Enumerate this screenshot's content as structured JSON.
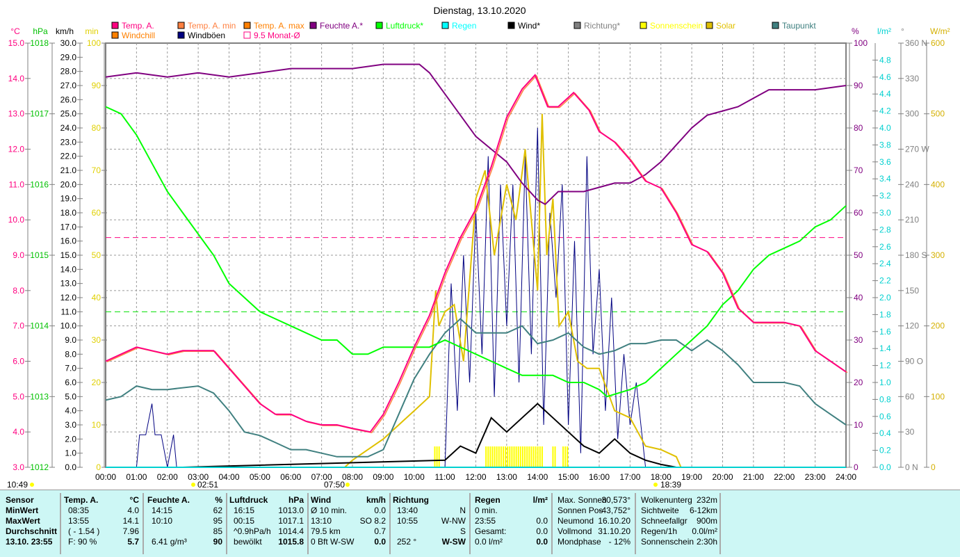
{
  "chart_data": {
    "type": "line",
    "title": "Dienstag, 13.10.2020",
    "xlim": [
      "00:00",
      "24:00"
    ],
    "x_ticks": [
      "00:00",
      "01:00",
      "02:00",
      "03:00",
      "04:00",
      "05:00",
      "06:00",
      "07:00",
      "08:00",
      "09:00",
      "10:00",
      "11:00",
      "12:00",
      "13:00",
      "14:00",
      "15:00",
      "16:00",
      "17:00",
      "18:00",
      "19:00",
      "20:00",
      "21:00",
      "22:00",
      "23:00",
      "24:00"
    ],
    "axes": {
      "temp": {
        "unit": "°C",
        "range": [
          3,
          15
        ],
        "ticks": [
          "3.0",
          "4.0",
          "5.0",
          "6.0",
          "7.0",
          "8.0",
          "9.0",
          "10.0",
          "11.0",
          "12.0",
          "13.0",
          "14.0",
          "15.0"
        ],
        "color": "#ff0080"
      },
      "pressure": {
        "unit": "hPa",
        "range": [
          1012,
          1018
        ],
        "ticks": [
          "1012",
          "1013",
          "1014",
          "1015",
          "1016",
          "1017",
          "1018"
        ],
        "color": "#00c000"
      },
      "wind": {
        "unit": "km/h",
        "range": [
          0,
          30
        ],
        "ticks": [
          "0.0",
          "1.0",
          "2.0",
          "3.0",
          "4.0",
          "5.0",
          "6.0",
          "7.0",
          "8.0",
          "9.0",
          "10.0",
          "11.0",
          "12.0",
          "13.0",
          "14.0",
          "15.0",
          "16.0",
          "17.0",
          "18.0",
          "19.0",
          "20.0",
          "21.0",
          "22.0",
          "23.0",
          "24.0",
          "25.0",
          "26.0",
          "27.0",
          "28.0",
          "29.0",
          "30.0"
        ],
        "color": "#000000"
      },
      "sun_min": {
        "unit": "min",
        "range": [
          0,
          100
        ],
        "ticks": [
          "0",
          "10",
          "20",
          "30",
          "40",
          "50",
          "60",
          "70",
          "80",
          "90",
          "100"
        ],
        "color": "#e0e000"
      },
      "humidity": {
        "unit": "%",
        "range": [
          0,
          100
        ],
        "ticks": [
          "0",
          "10",
          "20",
          "30",
          "40",
          "50",
          "60",
          "70",
          "80",
          "90",
          "100"
        ],
        "color": "#800080"
      },
      "rain": {
        "unit": "l/m²",
        "range": [
          0,
          5
        ],
        "ticks": [
          "0.0",
          "0.2",
          "0.4",
          "0.6",
          "0.8",
          "1.0",
          "1.2",
          "1.4",
          "1.6",
          "1.8",
          "2.0",
          "2.2",
          "2.4",
          "2.6",
          "2.8",
          "3.0",
          "3.2",
          "3.4",
          "3.6",
          "3.8",
          "4.0",
          "4.2",
          "4.4",
          "4.6",
          "4.8"
        ],
        "color": "#00d0d0"
      },
      "direction": {
        "unit": "°",
        "range": [
          0,
          360
        ],
        "ticks": [
          "0 N",
          "30",
          "60",
          "90 O",
          "120",
          "150",
          "180 S",
          "210",
          "240",
          "270 W",
          "300",
          "330",
          "360 N"
        ],
        "color": "#808080"
      },
      "solar": {
        "unit": "W/m²",
        "range": [
          0,
          600
        ],
        "ticks": [
          "0",
          "100",
          "200",
          "300",
          "400",
          "500",
          "600"
        ],
        "color": "#d4b000"
      }
    },
    "legend": [
      {
        "label": "Temp. A.",
        "color": "#ff0080"
      },
      {
        "label": "Temp. A. min",
        "color": "#ff8040"
      },
      {
        "label": "Temp. A. max",
        "color": "#ff8000"
      },
      {
        "label": "Feuchte A.*",
        "color": "#800080"
      },
      {
        "label": "Luftdruck*",
        "color": "#00ff00"
      },
      {
        "label": "Regen",
        "color": "#00ffff"
      },
      {
        "label": "Wind*",
        "color": "#000000"
      },
      {
        "label": "Richtung*",
        "color": "#808080"
      },
      {
        "label": "Sonnenschein",
        "color": "#ffff00"
      },
      {
        "label": "Solar",
        "color": "#e0c000"
      },
      {
        "label": "Taupunkt",
        "color": "#408080"
      },
      {
        "label": "Windchill",
        "color": "#ff8000"
      },
      {
        "label": "Windböen",
        "color": "#000080"
      },
      {
        "label": "9.5 Monat-Ø",
        "color": "#ff0080"
      }
    ],
    "reference_lines": [
      {
        "axis": "temp",
        "value": 9.5,
        "color": "#ff0080"
      },
      {
        "axis": "pressure",
        "value": 1014.2,
        "color": "#00e000"
      }
    ],
    "series": [
      {
        "name": "Temp. A.",
        "axis": "temp",
        "color": "#ff0080",
        "x": [
          0,
          0.5,
          1,
          1.5,
          2,
          2.5,
          3,
          3.5,
          4,
          4.5,
          5,
          5.5,
          6,
          6.5,
          7,
          7.5,
          8,
          8.58,
          9,
          9.5,
          10,
          10.5,
          11,
          11.5,
          12,
          12.5,
          13,
          13.5,
          13.92,
          14.33,
          14.67,
          15.17,
          15.67,
          16,
          16.5,
          17,
          17.5,
          18,
          18.5,
          19,
          19.5,
          20,
          20.5,
          21,
          22,
          22.5,
          23,
          23.5,
          24
        ],
        "y": [
          6.0,
          6.2,
          6.4,
          6.3,
          6.2,
          6.3,
          6.3,
          6.3,
          5.8,
          5.3,
          4.8,
          4.5,
          4.5,
          4.3,
          4.2,
          4.2,
          4.1,
          4.0,
          4.5,
          5.4,
          6.4,
          7.3,
          8.5,
          9.5,
          10.3,
          11.5,
          12.9,
          13.7,
          14.1,
          13.2,
          13.2,
          13.6,
          13.1,
          12.5,
          12.2,
          11.7,
          11.1,
          10.9,
          10.2,
          9.3,
          9.1,
          8.5,
          7.5,
          7.1,
          7.1,
          7.0,
          6.3,
          6.0,
          5.7
        ]
      },
      {
        "name": "Feuchte A.*",
        "axis": "humidity",
        "color": "#800080",
        "x": [
          0,
          1,
          2,
          3,
          4,
          5,
          6,
          8,
          9,
          10.17,
          10.5,
          11,
          11.5,
          12,
          12.5,
          13,
          13.5,
          14,
          14.25,
          14.67,
          15.5,
          16,
          16.5,
          17,
          17.5,
          18,
          18.5,
          19,
          19.5,
          20,
          20.5,
          21,
          21.5,
          22,
          23,
          24
        ],
        "y": [
          92,
          93,
          92,
          93,
          92,
          93,
          94,
          94,
          95,
          95,
          93,
          88,
          83,
          78,
          75,
          72,
          67,
          63,
          62,
          65,
          65,
          66,
          67,
          67,
          69,
          72,
          76,
          80,
          83,
          84,
          85,
          87,
          89,
          89,
          89,
          90
        ]
      },
      {
        "name": "Luftdruck*",
        "axis": "pressure",
        "color": "#00ff00",
        "x": [
          0,
          0.5,
          1,
          1.5,
          2,
          2.5,
          3,
          3.5,
          4,
          4.5,
          5,
          5.5,
          6,
          7,
          7.5,
          8,
          8.5,
          9,
          10,
          10.5,
          11,
          11.5,
          12,
          12.5,
          13,
          13.5,
          14,
          14.5,
          15,
          15.5,
          16,
          16.25,
          17,
          17.5,
          18,
          18.5,
          19,
          19.5,
          20,
          20.5,
          21,
          21.5,
          22,
          22.5,
          23,
          23.5,
          24
        ],
        "y": [
          1017.1,
          1017.0,
          1016.7,
          1016.3,
          1015.9,
          1015.6,
          1015.3,
          1015.0,
          1014.6,
          1014.4,
          1014.2,
          1014.1,
          1014.0,
          1013.8,
          1013.8,
          1013.6,
          1013.6,
          1013.7,
          1013.7,
          1013.7,
          1013.8,
          1013.7,
          1013.6,
          1013.5,
          1013.4,
          1013.3,
          1013.3,
          1013.3,
          1013.2,
          1013.2,
          1013.1,
          1013.0,
          1013.1,
          1013.2,
          1013.4,
          1013.6,
          1013.8,
          1014.0,
          1014.3,
          1014.5,
          1014.8,
          1015.0,
          1015.1,
          1015.2,
          1015.4,
          1015.5,
          1015.7
        ]
      },
      {
        "name": "Taupunkt",
        "axis": "temp",
        "color": "#408080",
        "x": [
          0,
          0.5,
          1,
          1.5,
          2,
          3,
          3.5,
          4,
          4.5,
          5,
          5.5,
          6,
          6.5,
          7,
          7.5,
          8,
          8.5,
          9,
          9.5,
          10,
          10.5,
          11,
          11.5,
          12,
          12.5,
          13,
          13.5,
          14,
          14.5,
          15,
          15.5,
          16,
          16.5,
          17,
          17.5,
          18,
          18.5,
          19,
          19.5,
          20,
          20.5,
          21,
          22,
          22.5,
          23,
          23.5,
          24
        ],
        "y": [
          4.9,
          5.0,
          5.3,
          5.2,
          5.2,
          5.3,
          5.1,
          4.6,
          4.0,
          3.9,
          3.7,
          3.5,
          3.5,
          3.4,
          3.3,
          3.3,
          3.3,
          3.5,
          4.5,
          5.5,
          6.2,
          6.8,
          7.2,
          6.8,
          6.8,
          6.8,
          7.0,
          6.5,
          6.6,
          6.8,
          6.4,
          6.2,
          6.3,
          6.5,
          6.5,
          6.6,
          6.6,
          6.3,
          6.6,
          6.3,
          5.9,
          5.4,
          5.4,
          5.3,
          4.8,
          4.5,
          4.2
        ]
      },
      {
        "name": "Solar",
        "axis": "solar",
        "color": "#e0c000",
        "x": [
          7.75,
          8,
          9,
          10,
          10.5,
          10.7,
          10.8,
          11,
          11.3,
          11.6,
          12,
          12.3,
          12.6,
          13,
          13.3,
          13.6,
          14,
          14.15,
          14.3,
          14.5,
          14.7,
          15,
          15.3,
          15.6,
          16,
          16.5,
          17,
          17.5,
          18,
          18.5,
          18.65
        ],
        "y": [
          0,
          10,
          40,
          80,
          100,
          250,
          200,
          220,
          230,
          150,
          380,
          420,
          300,
          400,
          350,
          450,
          250,
          500,
          300,
          380,
          200,
          220,
          150,
          140,
          140,
          80,
          70,
          30,
          25,
          15,
          0
        ]
      },
      {
        "name": "Windböen",
        "axis": "wind",
        "color": "#000080",
        "x": [
          1,
          1.1,
          1.3,
          1.5,
          1.6,
          1.8,
          2,
          2.2,
          2.3,
          11,
          11.2,
          11.4,
          11.6,
          11.8,
          12,
          12.2,
          12.4,
          12.6,
          12.8,
          13,
          13.2,
          13.4,
          13.6,
          13.8,
          14,
          14.2,
          14.4,
          14.6,
          14.8,
          15,
          15.2,
          15.4,
          15.6,
          15.8,
          16,
          16.2,
          16.4,
          16.6,
          16.8,
          17,
          17.2,
          17.5
        ],
        "y": [
          0,
          2.3,
          2.3,
          4.5,
          2.3,
          2.3,
          0,
          2.3,
          0,
          0,
          13,
          4,
          15,
          6,
          18,
          8,
          22,
          5,
          20,
          10,
          20,
          6,
          22,
          8,
          24,
          3,
          18,
          12,
          20,
          3,
          16,
          1,
          22,
          8,
          14,
          4,
          12,
          2,
          8,
          3,
          6,
          0
        ]
      },
      {
        "name": "Wind*",
        "axis": "wind",
        "color": "#000000",
        "x": [
          1,
          2.5,
          11,
          11.5,
          12,
          12.5,
          13,
          13.5,
          14,
          14.5,
          15,
          15.5,
          16,
          16.5,
          17,
          17.5,
          18,
          18.5
        ],
        "y": [
          0,
          0,
          0.5,
          1.5,
          1.0,
          3.5,
          2.5,
          3.5,
          4.5,
          3.5,
          2.5,
          1.5,
          1.0,
          2.0,
          1.0,
          0.5,
          0.2,
          0
        ]
      }
    ],
    "sunshine_minutes_intervals": [
      [
        10.67,
        10.83
      ],
      [
        12.33,
        14.17
      ],
      [
        14.5,
        14.58
      ],
      [
        14.83,
        15.0
      ]
    ]
  },
  "markers": {
    "now": "10:49",
    "moonrise": "02:51",
    "sunrise": "07:50",
    "sunset": "18:39"
  },
  "table": {
    "sensor": {
      "h": "Sensor",
      "rows": [
        "MinWert",
        "MaxWert",
        "Durchschnitt",
        "13.10. 23:55"
      ]
    },
    "temp": {
      "h": "Temp. A.",
      "u": "°C",
      "a": [
        "08:35",
        "13:55",
        "( - 1.54 )",
        "F: 90 %"
      ],
      "b": [
        "4.0",
        "14.1",
        "7.96",
        "5.7"
      ]
    },
    "hum": {
      "h": "Feuchte A.",
      "u": "%",
      "a": [
        "14:15",
        "10:10",
        "",
        "6.41 g/m³"
      ],
      "b": [
        "62",
        "95",
        "85",
        "90"
      ]
    },
    "press": {
      "h": "Luftdruck",
      "u": "hPa",
      "a": [
        "16:15",
        "00:15",
        "^0.9hPa/h",
        "bewölkt"
      ],
      "b": [
        "1013.0",
        "1017.1",
        "1014.4",
        "1015.8"
      ]
    },
    "wind": {
      "h": "Wind",
      "u": "km/h",
      "a": [
        "Ø 10 min.",
        "13:10",
        "79.5 km",
        "0 Bft W-SW"
      ],
      "b": [
        "0.0",
        "SO 8.2",
        "0.7",
        "0.0"
      ]
    },
    "dir": {
      "h": "Richtung",
      "u": "",
      "a": [
        "13:40",
        "10:55",
        "",
        "252 °"
      ],
      "b": [
        "N",
        "W-NW",
        "S",
        "W-SW"
      ]
    },
    "rain": {
      "h": "Regen",
      "u": "l/m²",
      "a": [
        "0 min.",
        "23:55",
        "Gesamt:",
        "0.0 l/m²"
      ],
      "b": [
        "",
        "0.0",
        "0.0",
        "0.0"
      ]
    },
    "astro": {
      "a": [
        "Max. Sonnen",
        "Sonnen Pos",
        "Neumond",
        "Vollmond",
        "Mondphase"
      ],
      "b": [
        "30,573°",
        "-43,752°",
        "16.10.20",
        "31.10.20",
        "- 12%"
      ]
    },
    "misc": {
      "a": [
        "Wolkenunterg",
        "Sichtweite",
        "Schneefallgr",
        "Regen/1h",
        "Sonnenschein"
      ],
      "b": [
        "232m",
        "6-12km",
        "900m",
        "0.0l/m²",
        "2:30h"
      ]
    }
  }
}
